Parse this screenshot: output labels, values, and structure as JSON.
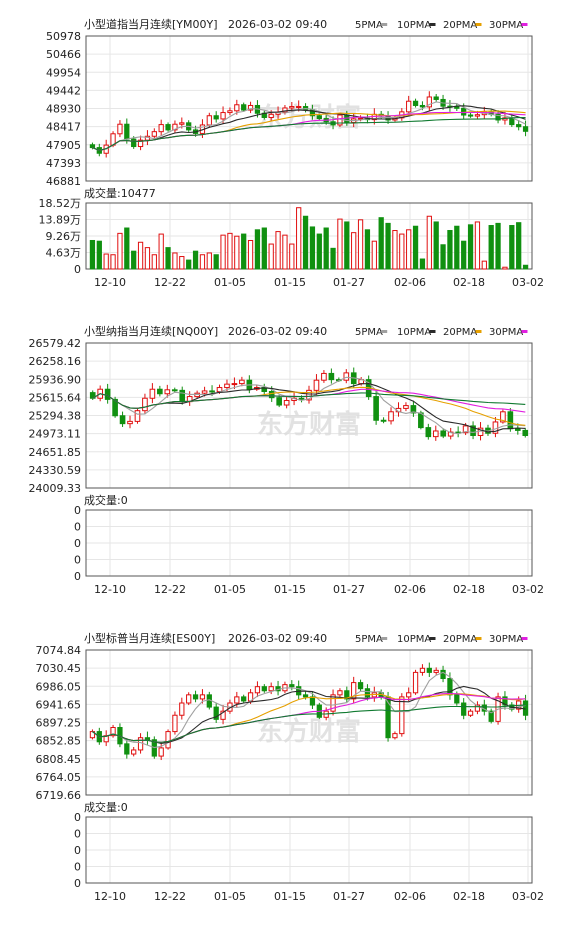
{
  "colors": {
    "up": "#e01010",
    "down": "#109010",
    "ma5": "#a0a0a0",
    "ma10": "#2a2a2a",
    "ma20": "#e6a000",
    "ma30": "#e020e0",
    "ma60": "#107a30",
    "grid": "#e6e6e6",
    "frame": "#555555",
    "text": "#222222",
    "watermark": "#dcdcdc"
  },
  "watermark": "东方财富",
  "legend": [
    {
      "label": "5PMA",
      "color_key": "ma5"
    },
    {
      "label": "10PMA",
      "color_key": "ma10"
    },
    {
      "label": "20PMA",
      "color_key": "ma20"
    },
    {
      "label": "30PMA",
      "color_key": "ma30"
    }
  ],
  "xaxis_labels": [
    "12-10",
    "12-22",
    "01-05",
    "01-15",
    "01-27",
    "02-06",
    "02-18",
    "03-02"
  ],
  "chart_data": [
    {
      "type": "candlestick",
      "title": "小型道指当月连续[YM00Y]",
      "datetime": "2026-03-02 09:40",
      "price_ticks": [
        "50978",
        "50466",
        "49954",
        "49442",
        "48930",
        "48417",
        "47905",
        "47393",
        "46881"
      ],
      "ylim": [
        46881,
        50978
      ],
      "volume_label": "成交量:10477",
      "volume_ticks": [
        "18.52万",
        "13.89万",
        "9.26万",
        "4.63万",
        "0"
      ],
      "volume_ylim": [
        0,
        185200
      ],
      "start": 47905,
      "deltas": [
        -80,
        -160,
        230,
        320,
        270,
        -420,
        -210,
        180,
        110,
        130,
        200,
        -150,
        160,
        40,
        -200,
        -100,
        240,
        260,
        -90,
        180,
        50,
        170,
        -150,
        130,
        -220,
        -120,
        90,
        60,
        120,
        40,
        0,
        -90,
        -170,
        -80,
        -90,
        -90,
        280,
        -210,
        100,
        20,
        -40,
        150,
        -50,
        -110,
        60,
        170,
        300,
        -120,
        -40,
        280,
        -70,
        -190,
        -20,
        -40,
        -190,
        -30,
        40,
        70,
        -60,
        -160,
        60,
        -190,
        -60,
        -130
      ],
      "volumes": [
        80000,
        78000,
        42000,
        40000,
        100000,
        115000,
        50000,
        75000,
        60000,
        40000,
        98000,
        60000,
        45000,
        35000,
        25000,
        50000,
        40000,
        45000,
        40000,
        95000,
        100000,
        92000,
        98000,
        80000,
        110000,
        115000,
        70000,
        105000,
        95000,
        70000,
        172000,
        148000,
        118000,
        98000,
        115000,
        58000,
        140000,
        132000,
        102000,
        138000,
        110000,
        78000,
        144000,
        128000,
        108000,
        98000,
        110000,
        120000,
        28000,
        148000,
        132000,
        68000,
        108000,
        120000,
        78000,
        124000,
        132000,
        22000,
        122000,
        128000,
        5000,
        122000,
        130000,
        10477
      ]
    },
    {
      "type": "candlestick",
      "title": "小型纳指当月连续[NQ00Y]",
      "datetime": "2026-03-02 09:40",
      "price_ticks": [
        "26579.42",
        "26258.16",
        "25936.90",
        "25615.64",
        "25294.38",
        "24973.11",
        "24651.85",
        "24330.59",
        "24009.33"
      ],
      "ylim": [
        24009.33,
        26579.42
      ],
      "volume_label": "成交量:0",
      "volume_ticks": [
        "0",
        "0",
        "0",
        "0",
        "0"
      ],
      "volume_ylim": [
        0,
        1
      ],
      "start": 25700,
      "deltas": [
        -100,
        160,
        -180,
        -290,
        -140,
        40,
        190,
        220,
        160,
        -80,
        70,
        -10,
        -200,
        90,
        60,
        40,
        -10,
        70,
        60,
        10,
        60,
        -160,
        30,
        -70,
        -110,
        -130,
        80,
        40,
        -30,
        170,
        180,
        120,
        -110,
        -10,
        130,
        -190,
        70,
        -300,
        -420,
        -10,
        160,
        60,
        50,
        -130,
        -260,
        -160,
        100,
        -90,
        70,
        -10,
        120,
        -170,
        130,
        -90,
        200,
        180,
        -300,
        -30,
        -90
      ]
    },
    {
      "type": "candlestick",
      "title": "小型标普当月连续[ES00Y]",
      "datetime": "2026-03-02 09:40",
      "price_ticks": [
        "7074.84",
        "7030.45",
        "6986.05",
        "6941.65",
        "6897.25",
        "6852.85",
        "6808.45",
        "6764.05",
        "6719.66"
      ],
      "ylim": [
        6719.66,
        7074.84
      ],
      "volume_label": "成交量:0",
      "volume_ticks": [
        "0",
        "0",
        "0",
        "0",
        "0"
      ],
      "volume_ylim": [
        0,
        1
      ],
      "start": 6860,
      "deltas": [
        15,
        -25,
        15,
        20,
        -40,
        -25,
        10,
        30,
        -5,
        -40,
        20,
        40,
        40,
        30,
        20,
        -10,
        10,
        -30,
        -30,
        20,
        20,
        15,
        -10,
        20,
        15,
        -10,
        10,
        -10,
        15,
        -5,
        -20,
        -5,
        -20,
        -30,
        15,
        40,
        10,
        -20,
        40,
        -15,
        -20,
        10,
        -10,
        -100,
        10,
        90,
        10,
        50,
        10,
        -10,
        5,
        -20,
        -40,
        -20,
        -30,
        10,
        15,
        -15,
        -25,
        60,
        -20,
        -10,
        20,
        -35
      ]
    }
  ]
}
